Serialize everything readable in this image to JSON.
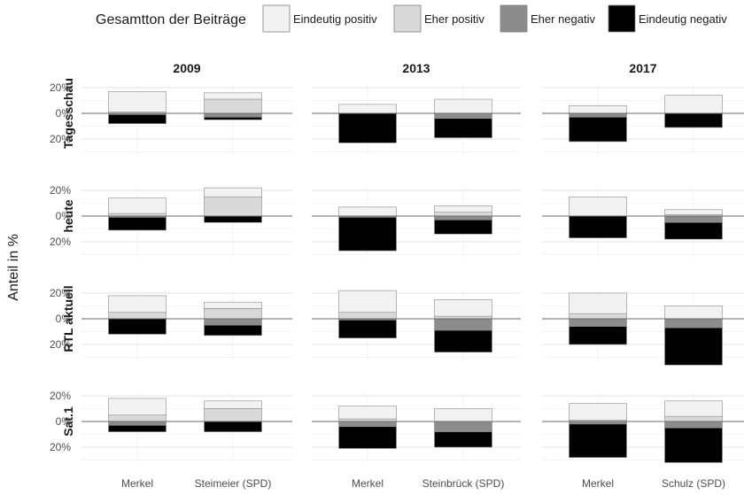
{
  "chart_data": {
    "type": "bar",
    "stacked": "diverging",
    "ylabel": "Anteil in %",
    "y_tick_labels": [
      "20%",
      "0%",
      "20%"
    ],
    "ylim": [
      -32,
      22
    ],
    "grid": true,
    "legend": {
      "title": "Gesamtton der Beiträge",
      "position": "top",
      "entries": [
        {
          "key": "eindeutig_positiv",
          "label": "Eindeutig positiv",
          "color": "#f2f2f2"
        },
        {
          "key": "eher_positiv",
          "label": "Eher positiv",
          "color": "#d9d9d9"
        },
        {
          "key": "eher_negativ",
          "label": "Eher negativ",
          "color": "#8c8c8c"
        },
        {
          "key": "eindeutig_negativ",
          "label": "Eindeutig negativ",
          "color": "#000000"
        }
      ]
    },
    "rows": [
      "Tagesschau",
      "heute",
      "RTL aktuell",
      "Sat.1"
    ],
    "columns": [
      {
        "year": "2009",
        "categories": [
          "Merkel",
          "Steimeier (SPD)"
        ]
      },
      {
        "year": "2013",
        "categories": [
          "Merkel",
          "Steinbrück (SPD)"
        ]
      },
      {
        "year": "2017",
        "categories": [
          "Merkel",
          "Schulz (SPD)"
        ]
      }
    ],
    "values": [
      [
        [
          {
            "eindeutig_positiv": 16,
            "eher_positiv": 1,
            "eher_negativ": 1,
            "eindeutig_negativ": 7
          },
          {
            "eindeutig_positiv": 5,
            "eher_positiv": 11,
            "eher_negativ": 3,
            "eindeutig_negativ": 2
          }
        ],
        [
          {
            "eindeutig_positiv": 7,
            "eher_positiv": 0,
            "eher_negativ": 0,
            "eindeutig_negativ": 23
          },
          {
            "eindeutig_positiv": 11,
            "eher_positiv": 0,
            "eher_negativ": 4,
            "eindeutig_negativ": 15
          }
        ],
        [
          {
            "eindeutig_positiv": 6,
            "eher_positiv": 0,
            "eher_negativ": 3,
            "eindeutig_negativ": 19
          },
          {
            "eindeutig_positiv": 14,
            "eher_positiv": 0,
            "eher_negativ": 0,
            "eindeutig_negativ": 11
          }
        ]
      ],
      [
        [
          {
            "eindeutig_positiv": 12,
            "eher_positiv": 2,
            "eher_negativ": 1,
            "eindeutig_negativ": 10
          },
          {
            "eindeutig_positiv": 7,
            "eher_positiv": 15,
            "eher_negativ": 0,
            "eindeutig_negativ": 5
          }
        ],
        [
          {
            "eindeutig_positiv": 7,
            "eher_positiv": 0,
            "eher_negativ": 1,
            "eindeutig_negativ": 26
          },
          {
            "eindeutig_positiv": 5,
            "eher_positiv": 3,
            "eher_negativ": 3,
            "eindeutig_negativ": 11
          }
        ],
        [
          {
            "eindeutig_positiv": 15,
            "eher_positiv": 0,
            "eher_negativ": 0,
            "eindeutig_negativ": 17
          },
          {
            "eindeutig_positiv": 4,
            "eher_positiv": 1,
            "eher_negativ": 5,
            "eindeutig_negativ": 13
          }
        ]
      ],
      [
        [
          {
            "eindeutig_positiv": 13,
            "eher_positiv": 5,
            "eher_negativ": 0,
            "eindeutig_negativ": 12
          },
          {
            "eindeutig_positiv": 5,
            "eher_positiv": 8,
            "eher_negativ": 5,
            "eindeutig_negativ": 8
          }
        ],
        [
          {
            "eindeutig_positiv": 17,
            "eher_positiv": 5,
            "eher_negativ": 1,
            "eindeutig_negativ": 14
          },
          {
            "eindeutig_positiv": 13,
            "eher_positiv": 2,
            "eher_negativ": 9,
            "eindeutig_negativ": 17
          }
        ],
        [
          {
            "eindeutig_positiv": 16,
            "eher_positiv": 4,
            "eher_negativ": 6,
            "eindeutig_negativ": 14
          },
          {
            "eindeutig_positiv": 10,
            "eher_positiv": 0,
            "eher_negativ": 7,
            "eindeutig_negativ": 29
          }
        ]
      ],
      [
        [
          {
            "eindeutig_positiv": 13,
            "eher_positiv": 5,
            "eher_negativ": 3,
            "eindeutig_negativ": 5
          },
          {
            "eindeutig_positiv": 6,
            "eher_positiv": 10,
            "eher_negativ": 0,
            "eindeutig_negativ": 8
          }
        ],
        [
          {
            "eindeutig_positiv": 10,
            "eher_positiv": 2,
            "eher_negativ": 4,
            "eindeutig_negativ": 17
          },
          {
            "eindeutig_positiv": 10,
            "eher_positiv": 0,
            "eher_negativ": 8,
            "eindeutig_negativ": 12
          }
        ],
        [
          {
            "eindeutig_positiv": 13,
            "eher_positiv": 1,
            "eher_negativ": 2,
            "eindeutig_negativ": 26
          },
          {
            "eindeutig_positiv": 12,
            "eher_positiv": 4,
            "eher_negativ": 5,
            "eindeutig_negativ": 27
          }
        ]
      ]
    ]
  }
}
